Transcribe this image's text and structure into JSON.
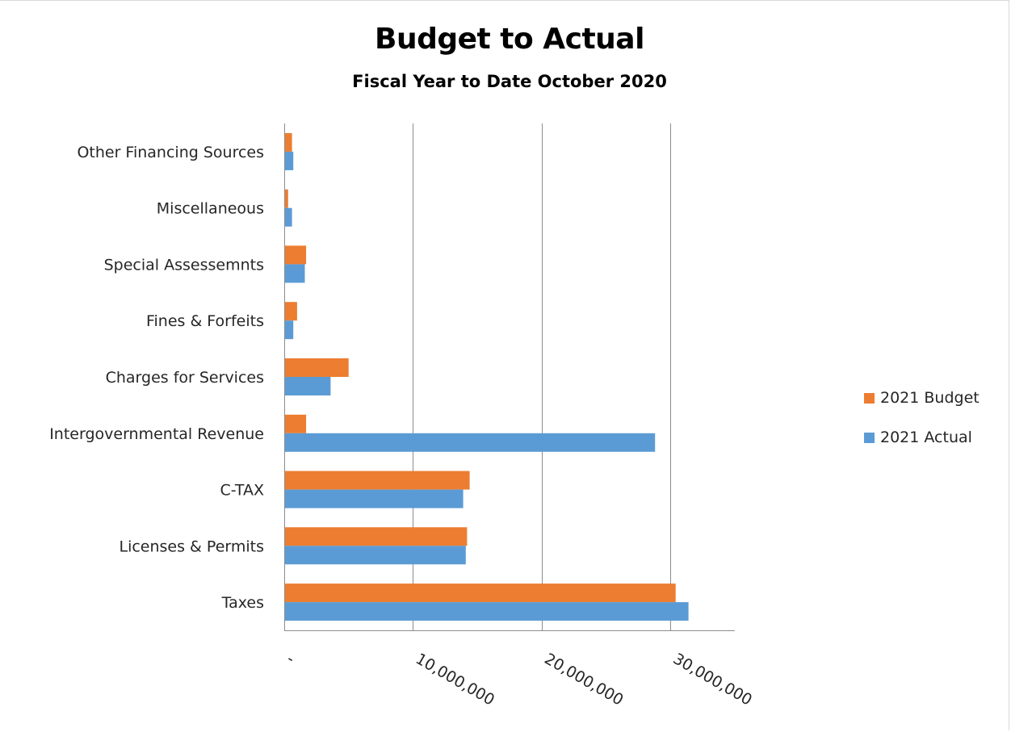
{
  "chart_data": {
    "type": "bar",
    "orientation": "horizontal",
    "title": "Budget to Actual",
    "subtitle": "Fiscal Year to Date October 2020",
    "xlabel": "",
    "ylabel": "",
    "xlim": [
      0,
      35000000
    ],
    "x_ticks": [
      {
        "value": 0,
        "label": "-"
      },
      {
        "value": 10000000,
        "label": "10,000,000"
      },
      {
        "value": 20000000,
        "label": "20,000,000"
      },
      {
        "value": 30000000,
        "label": "30,000,000"
      }
    ],
    "grid": "vertical major gridlines",
    "legend_position": "right",
    "categories": [
      "Taxes",
      "Licenses & Permits",
      "C-TAX",
      "Intergovernmental Revenue",
      "Charges for Services",
      "Fines & Forfeits",
      "Special Assessemnts",
      "Miscellaneous",
      "Other Financing Sources"
    ],
    "series": [
      {
        "name": "2021 Budget",
        "color": "#ed7d31",
        "values": [
          30400000,
          14200000,
          14400000,
          1700000,
          5000000,
          1000000,
          1700000,
          300000,
          600000
        ]
      },
      {
        "name": "2021 Actual",
        "color": "#5b9bd5",
        "values": [
          31400000,
          14100000,
          13900000,
          28800000,
          3600000,
          700000,
          1600000,
          600000,
          700000
        ]
      }
    ]
  }
}
